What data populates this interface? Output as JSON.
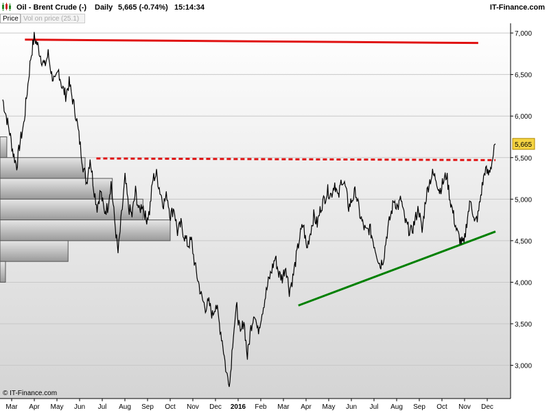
{
  "header": {
    "title": "Oil - Brent Crude (-)",
    "period": "Daily",
    "price_change": "5,665 (-0.74%)",
    "time": "15:14:34",
    "brand": "IT-Finance.com"
  },
  "tabs": [
    {
      "label": "Price",
      "active": true
    },
    {
      "label": "Vol on price (25.1)",
      "active": false
    }
  ],
  "copyright": "© IT-Finance.com",
  "colors": {
    "resistance": "#e01010",
    "support": "#008000",
    "price": "#000000",
    "last_badge": "#f5d442"
  },
  "chart_data": {
    "type": "line",
    "title": "Oil - Brent Crude (-)",
    "ylim": [
      2600,
      7100
    ],
    "yticks": [
      3000,
      3500,
      4000,
      4500,
      5000,
      5500,
      6000,
      6500,
      7000
    ],
    "ytick_labels": [
      "3,000",
      "3,500",
      "4,000",
      "4,500",
      "5,000",
      "5,500",
      "6,000",
      "6,500",
      "7,000"
    ],
    "x_labels": [
      "Mar",
      "Apr",
      "May",
      "Jun",
      "Jul",
      "Aug",
      "Sep",
      "Oct",
      "Nov",
      "Dec",
      "2016",
      "Feb",
      "Mar",
      "Apr",
      "May",
      "Jun",
      "Jul",
      "Aug",
      "Sep",
      "Oct",
      "Nov",
      "Dec"
    ],
    "last_value": 5665,
    "last_label": "5,665",
    "grid": true,
    "series": [
      {
        "values": [
          6200,
          6000,
          5800,
          5550,
          5400,
          5700,
          5900,
          6300,
          6700,
          6950,
          6850,
          6700,
          6600,
          6750,
          6500,
          6400,
          6550,
          6350,
          6250,
          6400,
          6200,
          6000,
          5700,
          5400,
          5200,
          5500,
          5150,
          4900,
          5100,
          4850,
          4900,
          5200,
          4750,
          4350,
          4800,
          5250,
          4900,
          4800,
          5100,
          4850,
          4950,
          4750,
          4850,
          5250,
          5300,
          5100,
          4950,
          5050,
          4800,
          4900,
          4600,
          4700,
          4550,
          4450,
          4500,
          4200,
          4000,
          3800,
          3700,
          3750,
          3600,
          3750,
          3500,
          3250,
          2900,
          2800,
          3400,
          3700,
          3350,
          3550,
          3100,
          3450,
          3650,
          3400,
          3600,
          3800,
          4000,
          4150,
          4300,
          4100,
          4050,
          4200,
          3900,
          4050,
          4300,
          4550,
          4700,
          4400,
          4600,
          4800,
          4700,
          4900,
          5000,
          5100,
          5050,
          5200,
          5000,
          5250,
          5150,
          4900,
          5000,
          5100,
          4850,
          4700,
          4600,
          4650,
          4500,
          4350,
          4200,
          4300,
          4600,
          4800,
          5000,
          4900,
          5000,
          4750,
          4650,
          4600,
          4750,
          4900,
          4600,
          5000,
          5200,
          5300,
          5250,
          5100,
          5200,
          5300,
          5000,
          4800,
          4600,
          4500,
          4450,
          4800,
          5000,
          4700,
          4800,
          5100,
          5350,
          5300,
          5450,
          5665
        ]
      }
    ],
    "volume_profile": [
      {
        "price_low": 5500,
        "price_high": 5750,
        "volume": 4
      },
      {
        "price_low": 5250,
        "price_high": 5500,
        "volume": 50
      },
      {
        "price_low": 5000,
        "price_high": 5250,
        "volume": 66
      },
      {
        "price_low": 4750,
        "price_high": 5000,
        "volume": 84
      },
      {
        "price_low": 4500,
        "price_high": 4750,
        "volume": 100
      },
      {
        "price_low": 4250,
        "price_high": 4500,
        "volume": 40
      },
      {
        "price_low": 4000,
        "price_high": 4250,
        "volume": 3
      }
    ],
    "trendlines": [
      {
        "kind": "resistance",
        "style": "solid",
        "from": {
          "x_index": 0.045,
          "y": 6920
        },
        "to": {
          "x_index": 0.965,
          "y": 6880
        }
      },
      {
        "kind": "resistance",
        "style": "dashed",
        "from": {
          "x_index": 0.19,
          "y": 5490
        },
        "to": {
          "x_index": 1.0,
          "y": 5470
        }
      },
      {
        "kind": "support",
        "style": "solid",
        "from": {
          "x_index": 0.6,
          "y": 3720
        },
        "to": {
          "x_index": 1.0,
          "y": 4610
        }
      }
    ]
  }
}
